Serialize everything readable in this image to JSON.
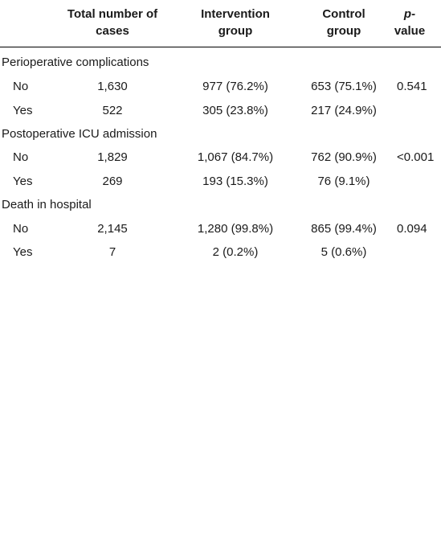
{
  "header": {
    "total_line1": "Total number of",
    "total_line2": "cases",
    "intervention_line1": "Intervention",
    "intervention_line2": "group",
    "control_line1": "Control",
    "control_line2": "group",
    "p_line1": "p-",
    "p_line2": "value"
  },
  "sections": [
    {
      "title": "Perioperative complications",
      "rows": [
        {
          "label": "No",
          "total": "1,630",
          "intervention": "977 (76.2%)",
          "control": "653 (75.1%)",
          "p": "0.541"
        },
        {
          "label": "Yes",
          "total": "522",
          "intervention": "305 (23.8%)",
          "control": "217 (24.9%)",
          "p": ""
        }
      ]
    },
    {
      "title": "Postoperative ICU admission",
      "rows": [
        {
          "label": "No",
          "total": "1,829",
          "intervention": "1,067 (84.7%)",
          "control": "762 (90.9%)",
          "p": "<0.001"
        },
        {
          "label": "Yes",
          "total": "269",
          "intervention": "193 (15.3%)",
          "control": "76 (9.1%)",
          "p": ""
        }
      ]
    },
    {
      "title": "Death in hospital",
      "rows": [
        {
          "label": "No",
          "total": "2,145",
          "intervention": "1,280 (99.8%)",
          "control": "865 (99.4%)",
          "p": "0.094"
        },
        {
          "label": "Yes",
          "total": "7",
          "intervention": "2 (0.2%)",
          "control": "5 (0.6%)",
          "p": ""
        }
      ]
    }
  ]
}
